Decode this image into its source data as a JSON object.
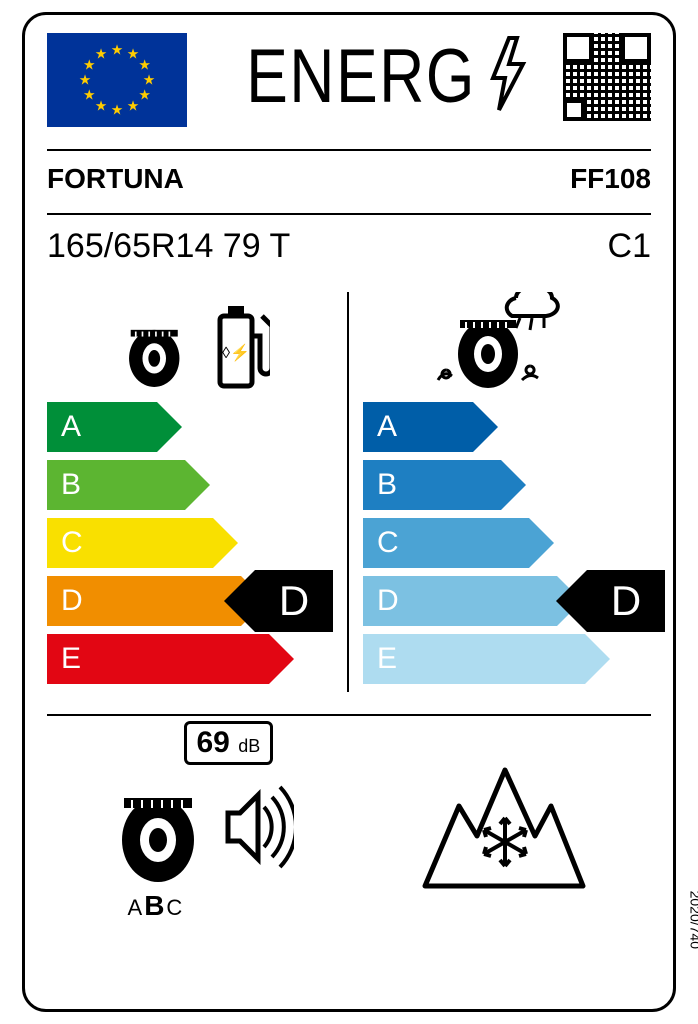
{
  "header": {
    "title": "ENERG"
  },
  "brand": "FORTUNA",
  "model": "FF108",
  "size": "165/65R14 79 T",
  "tire_class": "C1",
  "fuel": {
    "grades": [
      "A",
      "B",
      "C",
      "D",
      "E"
    ],
    "colors": [
      "#008f39",
      "#5cb531",
      "#f9e000",
      "#f18e00",
      "#e20613"
    ],
    "rating": "D",
    "rating_index": 3
  },
  "wet": {
    "grades": [
      "A",
      "B",
      "C",
      "D",
      "E"
    ],
    "colors": [
      "#005ea8",
      "#1e7fc2",
      "#4ba3d4",
      "#7cc1e2",
      "#aedcf0"
    ],
    "rating": "D",
    "rating_index": 3
  },
  "arrow_widths": [
    110,
    138,
    166,
    194,
    222
  ],
  "noise": {
    "db": "69",
    "unit": "dB",
    "classes": [
      "A",
      "B",
      "C"
    ],
    "selected_class": "B"
  },
  "regulation": "2020/740",
  "style": {
    "arrow_text_color": "#ffffff",
    "badge_bg": "#000000",
    "badge_text": "#ffffff"
  }
}
